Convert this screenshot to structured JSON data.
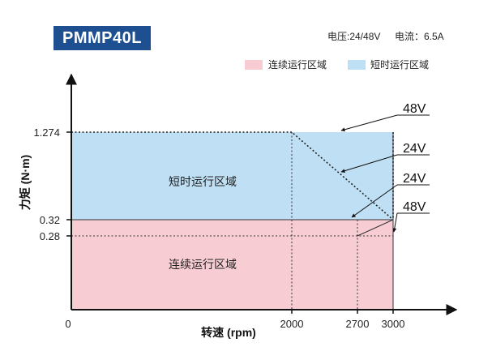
{
  "header": {
    "model": "PMMP40L",
    "voltage": "电压:24/48V",
    "current": "电流：6.5A"
  },
  "legend": {
    "continuous": "连续运行区域",
    "short_time": "短时运行区域"
  },
  "colors": {
    "continuous": "#f7cdd3",
    "short_time": "#bfe0f4",
    "title_bg": "#1d4f91",
    "axis": "#111111"
  },
  "chart_data": {
    "type": "area",
    "xlabel": "转速 (rpm)",
    "ylabel": "力矩 (N·m)",
    "x_ticks": [
      "0",
      "2000",
      "2700",
      "3000"
    ],
    "y_ticks": [
      "1.274",
      "0.32",
      "0.28"
    ],
    "xlim": [
      0,
      3400
    ],
    "ylim": [
      0,
      1.5
    ],
    "regions": [
      {
        "name": "连续运行区域",
        "x": [
          0,
          3000
        ],
        "y": [
          0,
          0.32
        ]
      },
      {
        "name": "短时运行区域",
        "x": [
          0,
          3000
        ],
        "y": [
          0.32,
          1.274
        ]
      }
    ],
    "series": [
      {
        "name": "48V",
        "x": [
          0,
          2000,
          3000
        ],
        "y": [
          1.274,
          1.274,
          0.32
        ]
      },
      {
        "name": "24V",
        "x": [
          0,
          2700,
          3000
        ],
        "y": [
          0.28,
          0.28,
          0.28
        ]
      }
    ],
    "annotations": [
      "48V",
      "24V",
      "24V",
      "48V"
    ],
    "region_labels": [
      "短时运行区域",
      "连续运行区域"
    ]
  }
}
